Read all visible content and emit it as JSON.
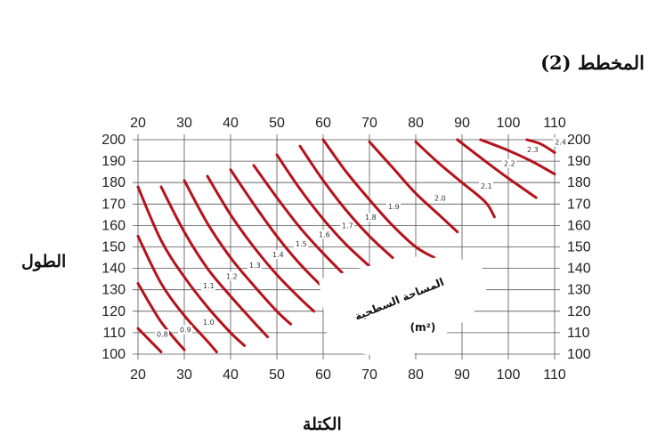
{
  "figure_title": "المخطط (2)",
  "chart_data": {
    "type": "line",
    "xlabel": "الكتلة",
    "ylabel": "الطول",
    "surface_label": "المساحة السطحية",
    "surface_unit": "(m²)",
    "x_ticks": [
      20,
      30,
      40,
      50,
      60,
      70,
      80,
      90,
      100,
      110
    ],
    "y_ticks": [
      100,
      110,
      120,
      130,
      140,
      150,
      160,
      170,
      180,
      190,
      200
    ],
    "xlim": [
      20,
      110
    ],
    "ylim": [
      100,
      200
    ],
    "grid": true,
    "line_color": "#b5121b",
    "series": [
      {
        "name": "0.8",
        "points": [
          [
            20,
            112
          ],
          [
            25,
            101
          ]
        ]
      },
      {
        "name": "0.9",
        "points": [
          [
            20,
            133
          ],
          [
            25,
            115
          ],
          [
            30,
            102
          ]
        ]
      },
      {
        "name": "1.0",
        "points": [
          [
            20,
            155
          ],
          [
            25,
            133
          ],
          [
            30,
            118
          ],
          [
            35,
            106
          ],
          [
            37,
            101
          ]
        ]
      },
      {
        "name": "1.1",
        "points": [
          [
            20,
            178
          ],
          [
            25,
            153
          ],
          [
            30,
            136
          ],
          [
            35,
            122
          ],
          [
            40,
            110
          ],
          [
            43,
            104
          ]
        ]
      },
      {
        "name": "1.2",
        "points": [
          [
            25,
            178
          ],
          [
            30,
            157
          ],
          [
            35,
            140
          ],
          [
            40,
            127
          ],
          [
            45,
            115
          ],
          [
            48,
            108
          ]
        ]
      },
      {
        "name": "1.3",
        "points": [
          [
            30,
            181
          ],
          [
            35,
            161
          ],
          [
            40,
            145
          ],
          [
            45,
            132
          ],
          [
            50,
            120
          ],
          [
            53,
            114
          ]
        ]
      },
      {
        "name": "1.4",
        "points": [
          [
            35,
            183
          ],
          [
            40,
            165
          ],
          [
            45,
            150
          ],
          [
            50,
            137
          ],
          [
            55,
            126
          ],
          [
            58,
            120
          ]
        ]
      },
      {
        "name": "1.5",
        "points": [
          [
            40,
            186
          ],
          [
            45,
            170
          ],
          [
            50,
            155
          ],
          [
            55,
            142
          ],
          [
            60,
            131
          ],
          [
            63,
            125
          ]
        ]
      },
      {
        "name": "1.6",
        "points": [
          [
            45,
            188
          ],
          [
            50,
            173
          ],
          [
            55,
            159
          ],
          [
            60,
            147
          ],
          [
            65,
            136
          ]
        ]
      },
      {
        "name": "1.7",
        "points": [
          [
            50,
            193
          ],
          [
            55,
            177
          ],
          [
            60,
            163
          ],
          [
            65,
            151
          ],
          [
            70,
            141
          ]
        ]
      },
      {
        "name": "1.8",
        "points": [
          [
            55,
            197
          ],
          [
            60,
            181
          ],
          [
            65,
            167
          ],
          [
            70,
            155
          ],
          [
            75,
            145
          ]
        ]
      },
      {
        "name": "1.9",
        "points": [
          [
            60,
            200
          ],
          [
            65,
            185
          ],
          [
            70,
            172
          ],
          [
            75,
            160
          ],
          [
            80,
            150
          ],
          [
            84,
            145
          ]
        ]
      },
      {
        "name": "2.0",
        "points": [
          [
            70,
            199
          ],
          [
            75,
            187
          ],
          [
            80,
            175
          ],
          [
            85,
            165
          ],
          [
            89,
            157
          ]
        ]
      },
      {
        "name": "2.1",
        "points": [
          [
            80,
            199
          ],
          [
            85,
            189
          ],
          [
            90,
            180
          ],
          [
            95,
            171
          ],
          [
            97,
            164
          ]
        ]
      },
      {
        "name": "2.2",
        "points": [
          [
            89,
            200
          ],
          [
            95,
            190
          ],
          [
            100,
            182
          ],
          [
            106,
            173
          ]
        ]
      },
      {
        "name": "2.3",
        "points": [
          [
            94,
            200
          ],
          [
            100,
            195
          ],
          [
            105,
            190
          ],
          [
            110,
            184
          ]
        ]
      },
      {
        "name": "2.4",
        "points": [
          [
            104,
            200
          ],
          [
            107,
            198
          ],
          [
            110,
            194
          ]
        ]
      }
    ]
  }
}
